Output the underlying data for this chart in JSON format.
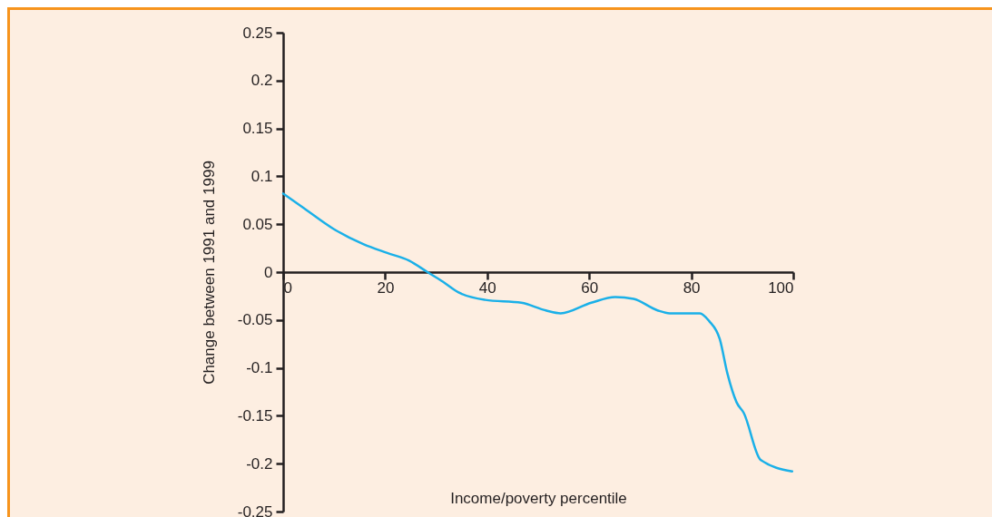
{
  "chart_data": {
    "type": "line",
    "xlabel": "Income/poverty percentile",
    "ylabel": "Change between 1991 and 1999",
    "x": [
      0,
      4.0,
      9.9,
      15.8,
      20.4,
      24.7,
      28.3,
      31.3,
      34.3,
      39.6,
      46.7,
      51.5,
      54.4,
      60.4,
      65.1,
      68.7,
      73.4,
      75.8,
      81.7,
      83.5,
      85.6,
      87.1,
      88.9,
      90.3,
      93.6,
      99.8
    ],
    "series": [
      {
        "color": "#1ab0e8",
        "values": [
          0.082,
          0.067,
          0.045,
          0.029,
          0.02,
          0.012,
          0,
          -0.01,
          -0.021,
          -0.029,
          -0.032,
          -0.04,
          -0.043,
          -0.032,
          -0.026,
          -0.028,
          -0.04,
          -0.043,
          -0.043,
          -0.051,
          -0.07,
          -0.106,
          -0.136,
          -0.147,
          -0.196,
          -0.208
        ]
      }
    ],
    "xlim": [
      0,
      100
    ],
    "xticks": [
      0,
      20,
      40,
      60,
      80,
      100
    ],
    "ylim": [
      -0.25,
      0.25
    ],
    "yticks": [
      -0.25,
      -0.2,
      -0.15,
      -0.1,
      -0.05,
      0,
      0.05,
      0.1,
      0.15,
      0.2,
      0.25
    ],
    "grid": false,
    "legend": false,
    "marker": "none",
    "line_style": "solid"
  }
}
